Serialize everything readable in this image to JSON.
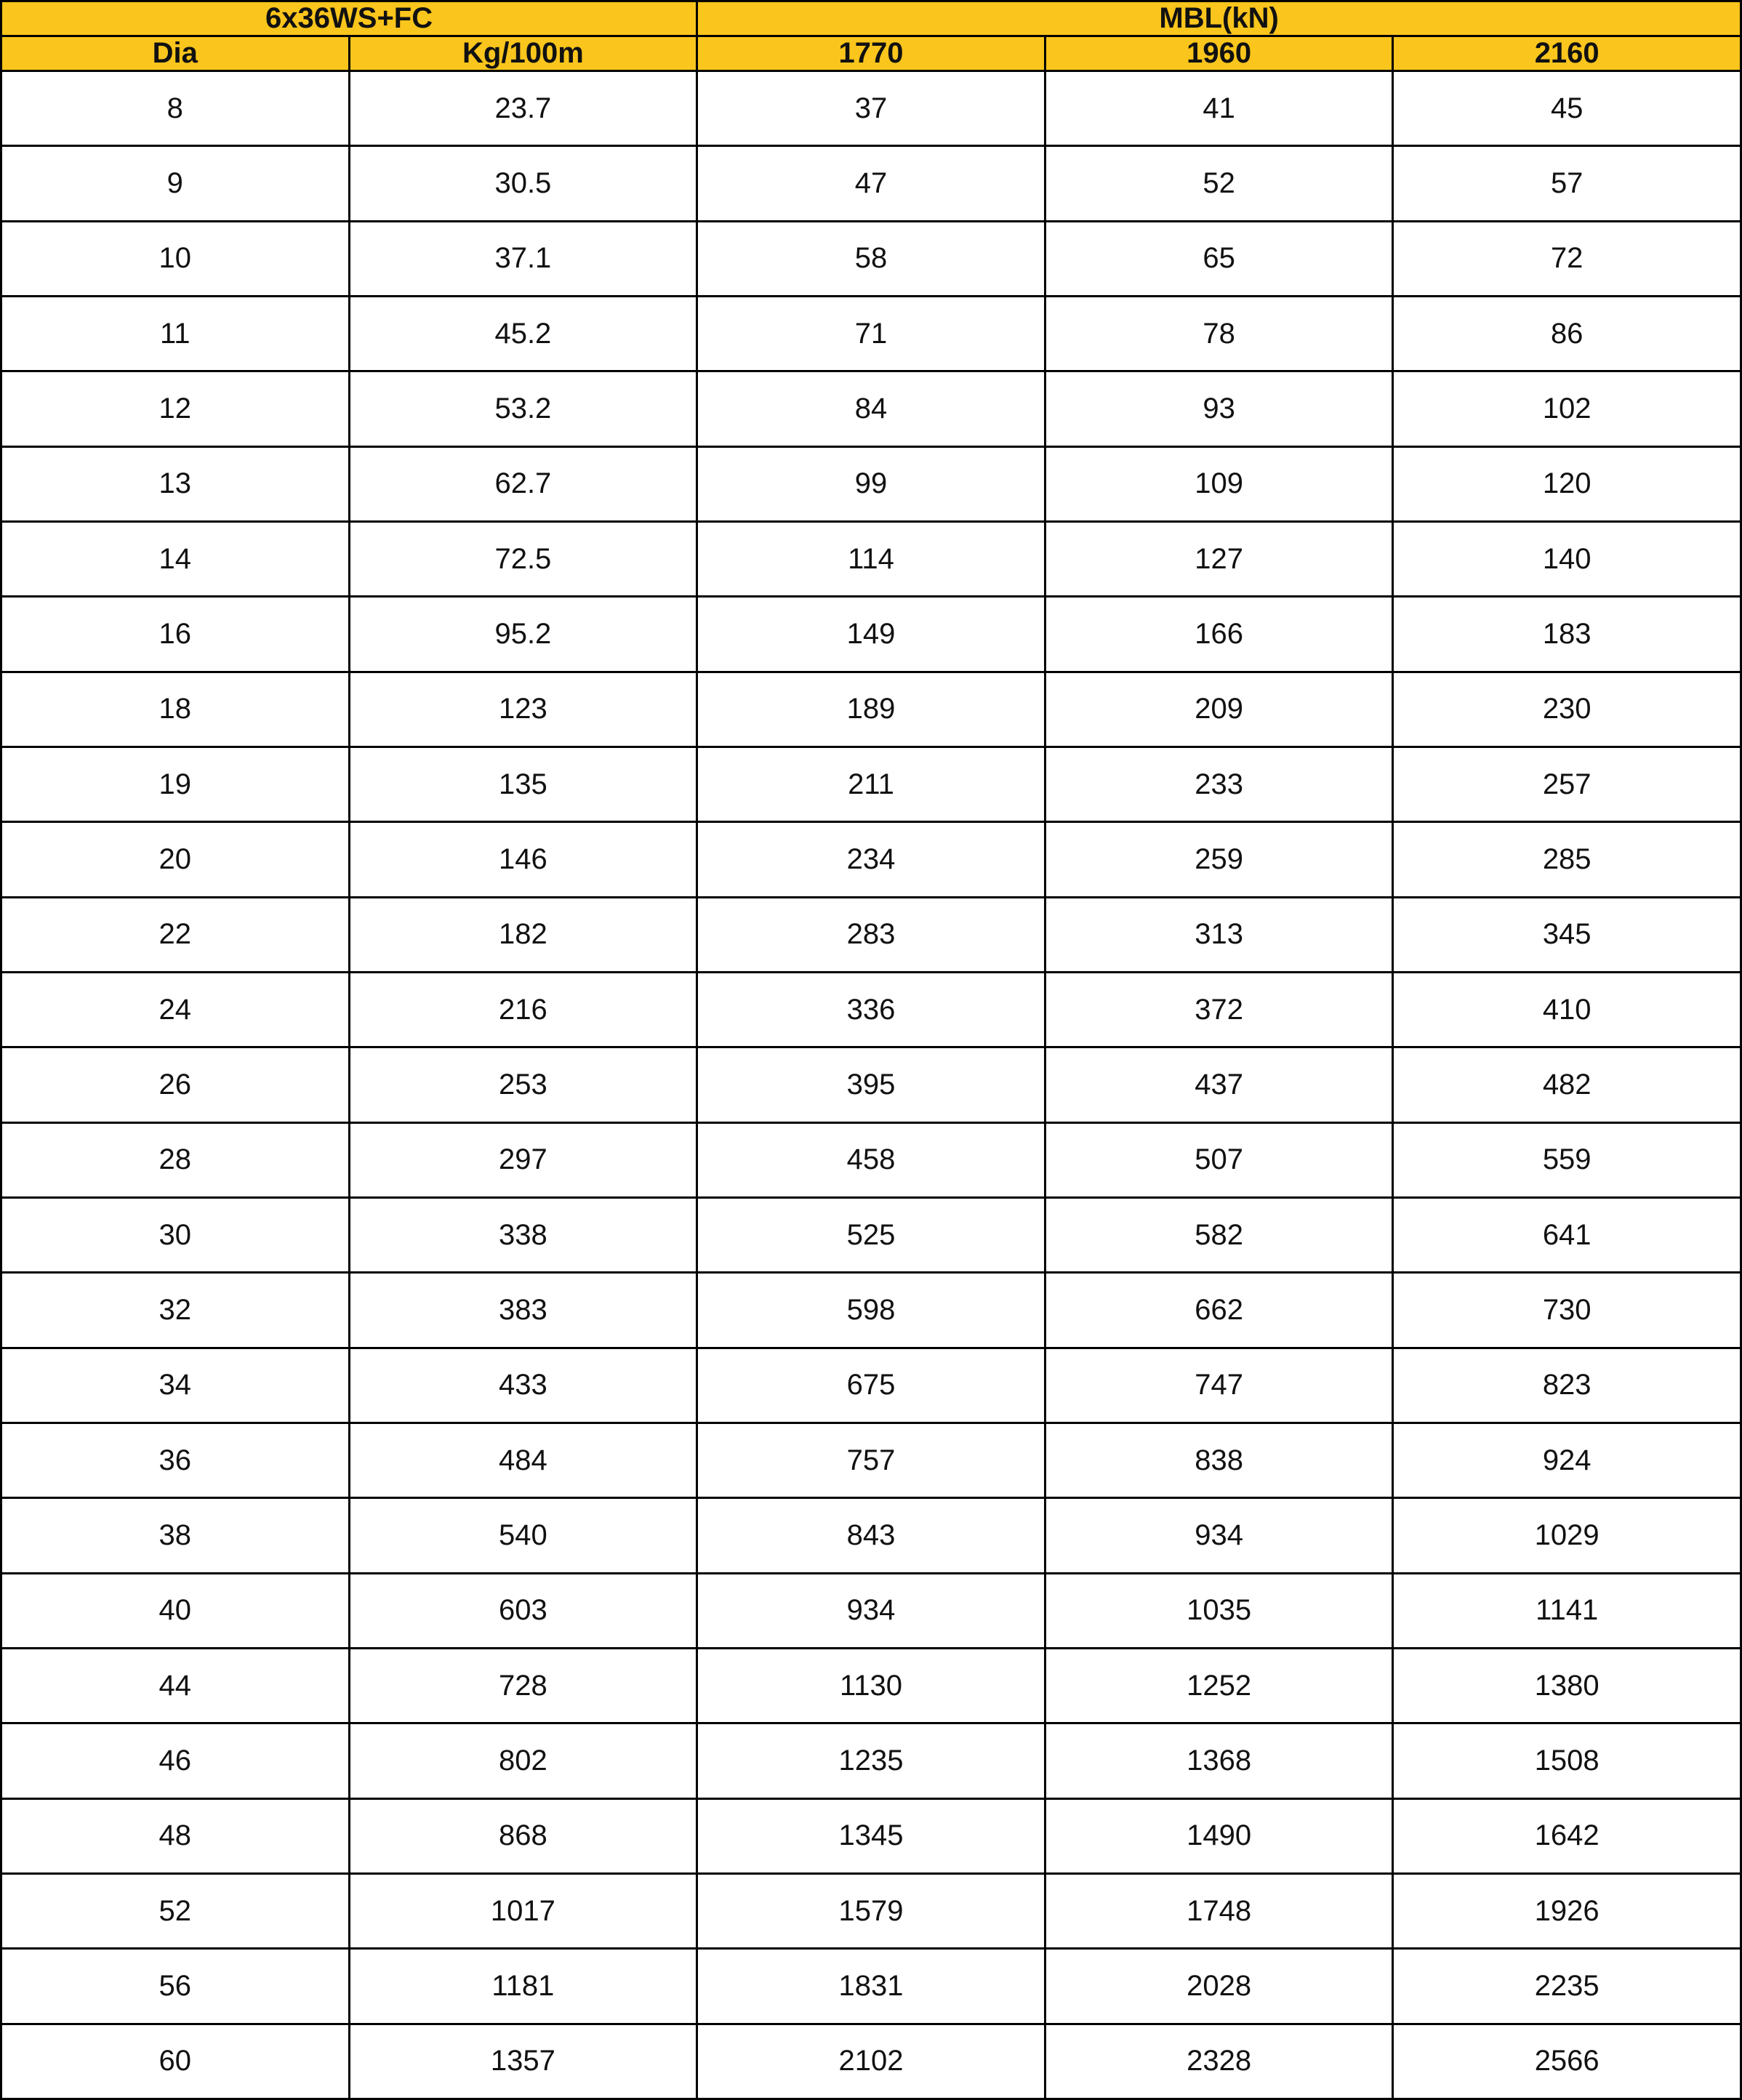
{
  "table": {
    "header": [
      [
        "6x36WS+FC",
        "MBL(kN)"
      ],
      [
        "Dia",
        "Kg/100m",
        "1770",
        "1960",
        "2160"
      ]
    ],
    "rows": [
      [
        8,
        23.7,
        37,
        41,
        45
      ],
      [
        9,
        30.5,
        47,
        52,
        57
      ],
      [
        10,
        37.1,
        58,
        65,
        72
      ],
      [
        11,
        45.2,
        71,
        78,
        86
      ],
      [
        12,
        53.2,
        84,
        93,
        102
      ],
      [
        13,
        62.7,
        99,
        109,
        120
      ],
      [
        14,
        72.5,
        114,
        127,
        140
      ],
      [
        16,
        95.2,
        149,
        166,
        183
      ],
      [
        18,
        123,
        189,
        209,
        230
      ],
      [
        19,
        135,
        211,
        233,
        257
      ],
      [
        20,
        146,
        234,
        259,
        285
      ],
      [
        22,
        182,
        283,
        313,
        345
      ],
      [
        24,
        216,
        336,
        372,
        410
      ],
      [
        26,
        253,
        395,
        437,
        482
      ],
      [
        28,
        297,
        458,
        507,
        559
      ],
      [
        30,
        338,
        525,
        582,
        641
      ],
      [
        32,
        383,
        598,
        662,
        730
      ],
      [
        34,
        433,
        675,
        747,
        823
      ],
      [
        36,
        484,
        757,
        838,
        924
      ],
      [
        38,
        540,
        843,
        934,
        1029
      ],
      [
        40,
        603,
        934,
        1035,
        1141
      ],
      [
        44,
        728,
        1130,
        1252,
        1380
      ],
      [
        46,
        802,
        1235,
        1368,
        1508
      ],
      [
        48,
        868,
        1345,
        1490,
        1642
      ],
      [
        52,
        1017,
        1579,
        1748,
        1926
      ],
      [
        56,
        1181,
        1831,
        2028,
        2235
      ],
      [
        60,
        1357,
        2102,
        2328,
        2566
      ]
    ]
  }
}
